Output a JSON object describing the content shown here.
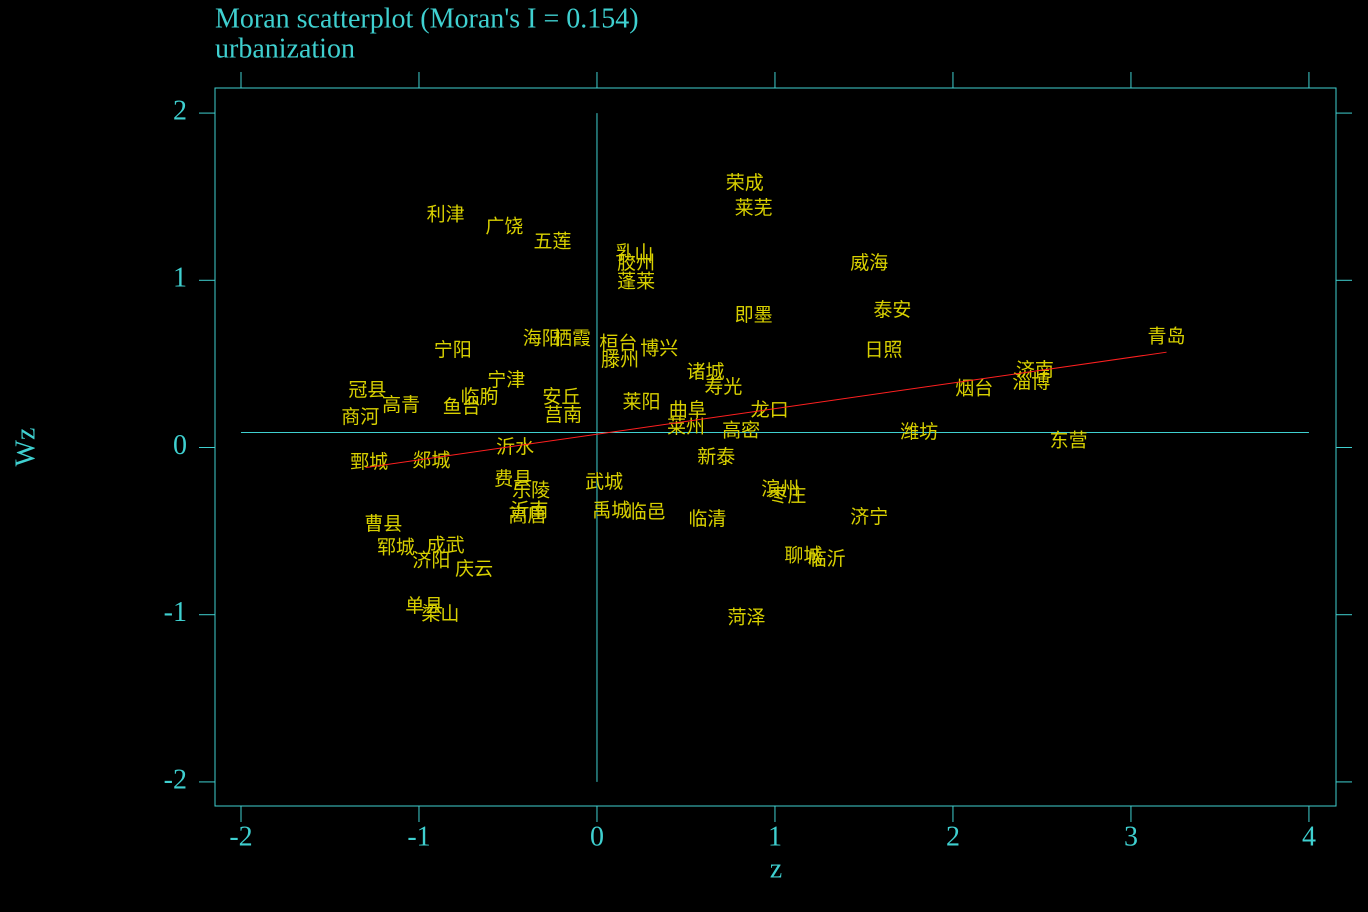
{
  "chart_data": {
    "type": "scatter",
    "title": "Moran scatterplot (Moran's I = 0.154)",
    "subtitle": "urbanization",
    "x_label": "z",
    "y_label": "Wz",
    "xlim": [
      -2.146,
      4.152
    ],
    "ylim": [
      -2.144,
      2.15
    ],
    "xticks": [
      -2,
      -1,
      0,
      1,
      2,
      3,
      4
    ],
    "yticks": [
      -2,
      -1,
      0,
      1,
      2
    ],
    "axis_color": "#3fd0d0",
    "label_color": "#d8d000",
    "xline": 0,
    "yline": 0.09,
    "fit_line": {
      "x": [
        -1.3,
        3.2
      ],
      "values": [
        -0.12,
        0.57
      ],
      "color": "#ff2020"
    },
    "labels": [
      "荣成",
      "莱芜",
      "利津",
      "广饶",
      "五莲",
      "乳山",
      "胶州",
      "蓬莱",
      "威海",
      "泰安",
      "即墨",
      "青岛",
      "日照",
      "宁阳",
      "海阳",
      "栖霞",
      "桓台",
      "博兴",
      "诸城",
      "滕州",
      "济南",
      "淄博",
      "烟台",
      "冠县",
      "商河",
      "高青",
      "临朐",
      "鱼台",
      "宁津",
      "安丘",
      "莒南",
      "莱阳",
      "曲阜",
      "龙口",
      "莱州",
      "高密",
      "寿光",
      "潍坊",
      "东营",
      "新泰",
      "鄄城",
      "郯城",
      "沂水",
      "费县",
      "乐陵",
      "武城",
      "沂南",
      "高唐",
      "禹城",
      "临邑",
      "临清",
      "滨州",
      "枣庄",
      "济宁",
      "聊城",
      "临沂",
      "郓城",
      "成武",
      "济阳",
      "庆云",
      "曹县",
      "单县",
      "梁山",
      "菏泽"
    ],
    "x": [
      0.83,
      0.88,
      -0.85,
      -0.52,
      -0.25,
      0.21,
      0.22,
      0.22,
      1.53,
      1.66,
      0.88,
      3.2,
      1.61,
      -0.81,
      -0.31,
      -0.14,
      0.12,
      0.35,
      0.61,
      0.13,
      2.46,
      2.44,
      2.12,
      -1.29,
      -1.33,
      -1.1,
      -0.66,
      -0.76,
      -0.51,
      -0.2,
      -0.19,
      0.25,
      0.51,
      0.97,
      0.5,
      0.81,
      0.71,
      1.81,
      2.65,
      0.67,
      -1.28,
      -0.93,
      -0.46,
      -0.47,
      -0.37,
      0.04,
      -0.38,
      -0.39,
      0.08,
      0.28,
      0.62,
      1.03,
      1.07,
      1.53,
      1.16,
      1.29,
      -1.13,
      -0.85,
      -0.93,
      -0.69,
      -1.2,
      -0.97,
      -0.88,
      0.84
    ],
    "values": [
      1.58,
      1.43,
      1.39,
      1.32,
      1.23,
      1.16,
      1.1,
      0.99,
      1.1,
      0.82,
      0.79,
      0.66,
      0.58,
      0.58,
      0.65,
      0.65,
      0.62,
      0.59,
      0.45,
      0.52,
      0.46,
      0.39,
      0.35,
      0.34,
      0.18,
      0.25,
      0.3,
      0.24,
      0.4,
      0.3,
      0.19,
      0.27,
      0.22,
      0.22,
      0.12,
      0.1,
      0.36,
      0.09,
      0.04,
      -0.06,
      -0.09,
      -0.08,
      0,
      -0.19,
      -0.26,
      -0.21,
      -0.38,
      -0.41,
      -0.38,
      -0.39,
      -0.43,
      -0.25,
      -0.29,
      -0.42,
      -0.65,
      -0.67,
      -0.6,
      -0.59,
      -0.68,
      -0.73,
      -0.46,
      -0.95,
      -1,
      -1.02
    ]
  }
}
